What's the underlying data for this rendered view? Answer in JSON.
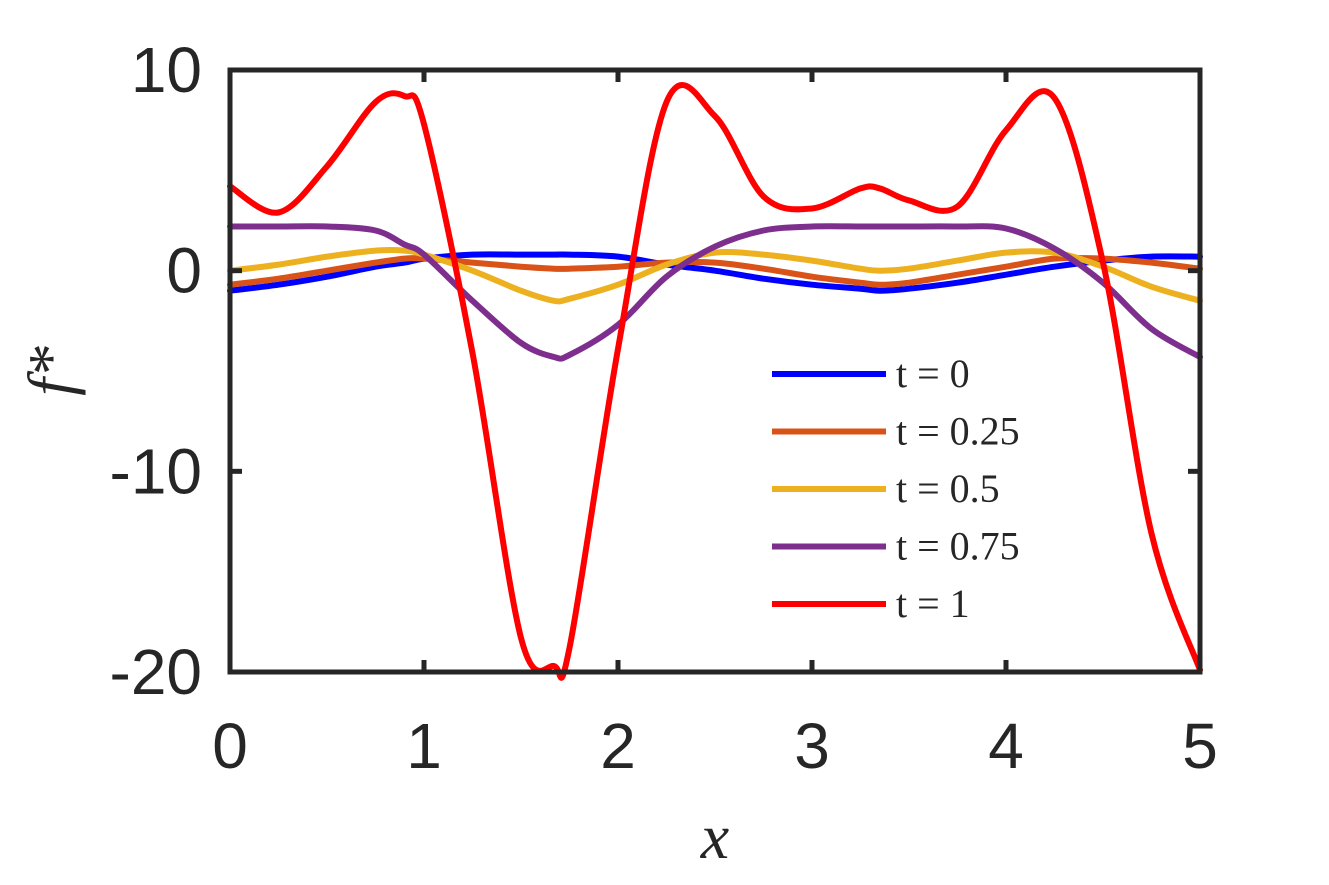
{
  "chart_data": {
    "type": "line",
    "xlabel": "x",
    "ylabel": "f*",
    "xlim": [
      0,
      5
    ],
    "ylim": [
      -20,
      10
    ],
    "xticks": [
      0,
      1,
      2,
      3,
      4,
      5
    ],
    "xtick_labels": [
      "0",
      "1",
      "2",
      "3",
      "4",
      "5"
    ],
    "yticks": [
      -20,
      -10,
      0,
      10
    ],
    "ytick_labels": [
      "-20",
      "-10",
      "0",
      "10"
    ],
    "grid": false,
    "legend_position": "bottom-right inside",
    "x": [
      0,
      0.25,
      0.5,
      0.75,
      0.9,
      1.0,
      1.25,
      1.5,
      1.67,
      1.75,
      2.0,
      2.25,
      2.5,
      2.75,
      3.0,
      3.25,
      3.35,
      3.5,
      3.75,
      4.0,
      4.25,
      4.5,
      4.75,
      5.0
    ],
    "series": [
      {
        "name": "t = 0",
        "color": "#0000ff",
        "values": [
          -1.0,
          -0.7,
          -0.3,
          0.2,
          0.4,
          0.6,
          0.8,
          0.8,
          0.8,
          0.8,
          0.7,
          0.3,
          0.0,
          -0.4,
          -0.7,
          -0.9,
          -1.0,
          -0.9,
          -0.6,
          -0.2,
          0.2,
          0.5,
          0.7,
          0.7
        ]
      },
      {
        "name": "t = 0.25",
        "color": "#d95319",
        "values": [
          -0.7,
          -0.4,
          0.0,
          0.4,
          0.6,
          0.6,
          0.4,
          0.2,
          0.1,
          0.1,
          0.2,
          0.4,
          0.4,
          0.1,
          -0.3,
          -0.6,
          -0.7,
          -0.6,
          -0.2,
          0.2,
          0.6,
          0.6,
          0.4,
          0.1
        ]
      },
      {
        "name": "t = 0.5",
        "color": "#edb120",
        "values": [
          0.0,
          0.3,
          0.7,
          1.0,
          1.0,
          0.8,
          0.0,
          -1.0,
          -1.5,
          -1.4,
          -0.7,
          0.3,
          0.9,
          0.8,
          0.5,
          0.1,
          0.0,
          0.1,
          0.5,
          0.9,
          0.9,
          0.2,
          -0.8,
          -1.5
        ]
      },
      {
        "name": "t = 0.75",
        "color": "#7e2f8e",
        "values": [
          2.2,
          2.2,
          2.2,
          2.0,
          1.3,
          0.8,
          -1.5,
          -3.6,
          -4.3,
          -4.2,
          -2.7,
          -0.3,
          1.2,
          2.0,
          2.2,
          2.2,
          2.2,
          2.2,
          2.2,
          2.1,
          1.1,
          -0.6,
          -2.9,
          -4.3
        ]
      },
      {
        "name": "t = 1",
        "color": "#ff0000",
        "values": [
          4.2,
          2.9,
          5.2,
          8.4,
          8.7,
          7.3,
          -4.1,
          -18.3,
          -19.7,
          -18.8,
          -3.9,
          8.4,
          7.7,
          3.7,
          3.1,
          4.1,
          4.1,
          3.5,
          3.2,
          7.0,
          8.6,
          0.4,
          -13.1,
          -19.9
        ]
      }
    ]
  }
}
